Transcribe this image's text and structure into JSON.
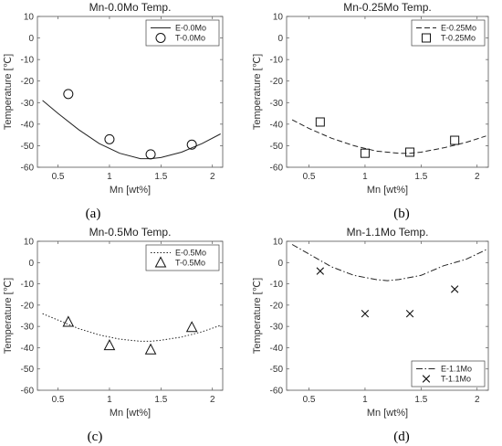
{
  "chart_data": [
    {
      "type": "line",
      "title": "Mn-0.0Mo Temp.",
      "xlabel": "Mn [wt%]",
      "ylabel": "Temperature [℃]",
      "caption": "(a)",
      "xlim": [
        0.3,
        2.1
      ],
      "ylim": [
        -60,
        10
      ],
      "xticks": [
        "0.5",
        "1",
        "1.5",
        "2"
      ],
      "yticks": [
        "10",
        "0",
        "-10",
        "-20",
        "-30",
        "-40",
        "-50",
        "-60"
      ],
      "legend": "top-right",
      "curve": {
        "name": "E-0.0Mo",
        "style": "solid",
        "x": [
          0.35,
          0.5,
          0.7,
          0.9,
          1.1,
          1.3,
          1.4,
          1.5,
          1.7,
          1.9,
          2.08
        ],
        "y": [
          -29,
          -35,
          -42.5,
          -49,
          -53.5,
          -56,
          -56,
          -55.5,
          -53,
          -49,
          -44.5
        ]
      },
      "points": {
        "name": "T-0.0Mo",
        "marker": "circle",
        "x": [
          0.6,
          1.0,
          1.4,
          1.8
        ],
        "y": [
          -26,
          -47,
          -54,
          -49.5
        ]
      }
    },
    {
      "type": "line",
      "title": "Mn-0.25Mo Temp.",
      "xlabel": "Mn [wt%]",
      "ylabel": "Temperature [℃]",
      "caption": "(b)",
      "xlim": [
        0.3,
        2.1
      ],
      "ylim": [
        -60,
        10
      ],
      "xticks": [
        "0.5",
        "1",
        "1.5",
        "2"
      ],
      "yticks": [
        "10",
        "0",
        "-10",
        "-20",
        "-30",
        "-40",
        "-50",
        "-60"
      ],
      "legend": "top-right",
      "curve": {
        "name": "E-0.25Mo",
        "style": "dashed",
        "x": [
          0.35,
          0.5,
          0.7,
          0.9,
          1.1,
          1.3,
          1.4,
          1.5,
          1.7,
          1.9,
          2.08
        ],
        "y": [
          -38,
          -42,
          -46.5,
          -50,
          -52.5,
          -53.5,
          -53.5,
          -53,
          -51,
          -48.5,
          -45.5
        ]
      },
      "points": {
        "name": "T-0.25Mo",
        "marker": "square",
        "x": [
          0.6,
          1.0,
          1.4,
          1.8
        ],
        "y": [
          -39,
          -53.5,
          -53,
          -47.5
        ]
      }
    },
    {
      "type": "line",
      "title": "Mn-0.5Mo Temp.",
      "xlabel": "Mn [wt%]",
      "ylabel": "Temperature [℃]",
      "caption": "(c)",
      "xlim": [
        0.3,
        2.1
      ],
      "ylim": [
        -60,
        10
      ],
      "xticks": [
        "0.5",
        "1",
        "1.5",
        "2"
      ],
      "yticks": [
        "10",
        "0",
        "-10",
        "-20",
        "-30",
        "-40",
        "-50",
        "-60"
      ],
      "legend": "top-right",
      "curve": {
        "name": "E-0.5Mo",
        "style": "dotted",
        "x": [
          0.35,
          0.5,
          0.7,
          0.9,
          1.1,
          1.3,
          1.4,
          1.5,
          1.7,
          1.9,
          2.08
        ],
        "y": [
          -24,
          -27,
          -31,
          -34,
          -36,
          -37,
          -37,
          -36.5,
          -35,
          -32.5,
          -29.5
        ]
      },
      "points": {
        "name": "T-0.5Mo",
        "marker": "triangle",
        "x": [
          0.6,
          1.0,
          1.4,
          1.8
        ],
        "y": [
          -28,
          -39,
          -41,
          -30.5
        ]
      }
    },
    {
      "type": "line",
      "title": "Mn-1.1Mo Temp.",
      "xlabel": "Mn [wt%]",
      "ylabel": "Temperature [℃]",
      "caption": "(d)",
      "xlim": [
        0.3,
        2.1
      ],
      "ylim": [
        -60,
        10
      ],
      "xticks": [
        "0.5",
        "1",
        "1.5",
        "2"
      ],
      "yticks": [
        "10",
        "0",
        "-10",
        "-20",
        "-30",
        "-40",
        "-50",
        "-60"
      ],
      "legend": "bottom-right",
      "curve": {
        "name": "E-1.1Mo",
        "style": "dashdot",
        "x": [
          0.35,
          0.5,
          0.7,
          0.9,
          1.1,
          1.2,
          1.3,
          1.5,
          1.7,
          1.9,
          2.08
        ],
        "y": [
          8.5,
          4,
          -2,
          -6,
          -8,
          -8.5,
          -8,
          -6,
          -1.5,
          1.5,
          6
        ]
      },
      "points": {
        "name": "T-1.1Mo",
        "marker": "x",
        "x": [
          0.6,
          1.0,
          1.4,
          1.8
        ],
        "y": [
          -4,
          -24,
          -24,
          -12.5
        ]
      }
    }
  ]
}
